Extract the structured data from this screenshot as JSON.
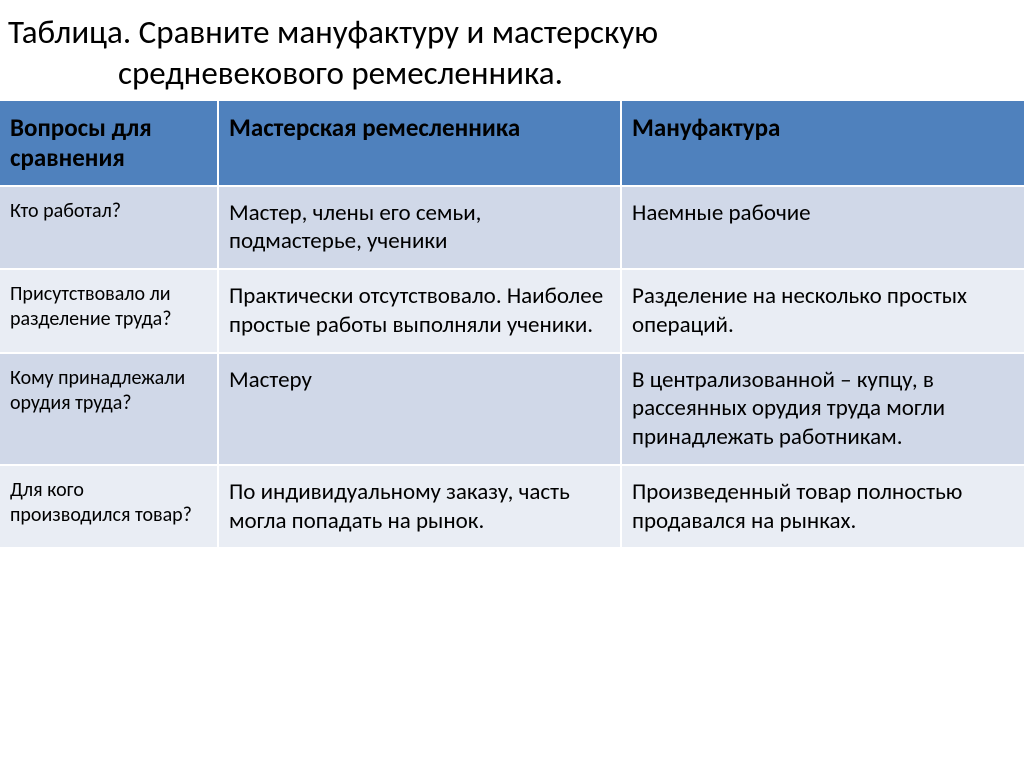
{
  "title_line1": "Таблица. Сравните мануфактуру и мастерскую",
  "title_line2": "средневекового ремесленника.",
  "table": {
    "columns": [
      "Вопросы для сравнения",
      "Мастерская ремесленника",
      "Мануфактура"
    ],
    "rows": [
      {
        "question": "Кто работал?",
        "workshop": "Мастер, члены его семьи, подмастерье, ученики",
        "manufacture": "Наемные рабочие"
      },
      {
        "question": "Присутствовало ли разделение труда?",
        "workshop": "Практически отсутствовало. Наиболее простые работы выполняли ученики.",
        "manufacture": "Разделение на несколько простых операций."
      },
      {
        "question": "Кому принадлежали орудия труда?",
        "workshop": "Мастеру",
        "manufacture": "В централизованной – купцу, в рассеянных орудия труда могли принадлежать работникам."
      },
      {
        "question": "Для кого производился товар?",
        "workshop": "По индивидуальному заказу, часть могла попадать на рынок.",
        "manufacture": "Произведенный товар полностью продавался на рынках."
      }
    ],
    "header_bg": "#4f81bd",
    "row_odd_bg": "#d0d8e8",
    "row_even_bg": "#e9edf4",
    "border_color": "#ffffff",
    "title_fontsize": 33,
    "header_fontsize": 25,
    "question_fontsize": 20,
    "answer_fontsize": 23
  }
}
